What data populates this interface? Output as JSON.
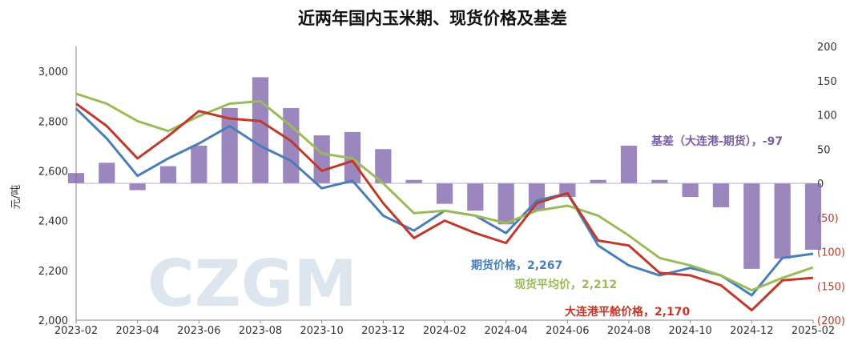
{
  "chart_data": {
    "type": "bar+line",
    "title": "近两年国内玉米期、现货价格及基差",
    "ylabel": "元/吨",
    "y_left_lim": [
      2000,
      3100
    ],
    "y_left_ticks": [
      2000,
      2200,
      2400,
      2600,
      2800,
      3000
    ],
    "y_left_tick_labels": [
      "2,000",
      "2,200",
      "2,400",
      "2,600",
      "2,800",
      "3,000"
    ],
    "y_right_lim": [
      -200,
      200
    ],
    "y_right_ticks": [
      200,
      150,
      100,
      50,
      0,
      -50,
      -100,
      -150,
      -200
    ],
    "y_right_tick_labels": [
      "200",
      "150",
      "100",
      "50",
      "0",
      "(50)",
      "(100)",
      "(150)",
      "(200)"
    ],
    "x_ticks": [
      "2023-02",
      "2023-04",
      "2023-06",
      "2023-08",
      "2023-10",
      "2023-12",
      "2024-02",
      "2024-04",
      "2024-06",
      "2024-08",
      "2024-10",
      "2024-12",
      "2025-02"
    ],
    "watermark": "CZGM",
    "colors": {
      "futures": "#4a7ebb",
      "spot_avg": "#9bbb59",
      "dalian": "#c0392b",
      "basis": "#7b5ea8"
    },
    "series": [
      {
        "key": "basis",
        "name": "基差（大连港-期货）",
        "axis": "right",
        "last_label": "基差（大连港-期货），-97",
        "x": [
          "2023-02",
          "2023-03",
          "2023-04",
          "2023-05",
          "2023-06",
          "2023-07",
          "2023-08",
          "2023-09",
          "2023-10",
          "2023-11",
          "2023-12",
          "2024-01",
          "2024-02",
          "2024-03",
          "2024-04",
          "2024-05",
          "2024-06",
          "2024-07",
          "2024-08",
          "2024-09",
          "2024-10",
          "2024-11",
          "2024-12",
          "2025-01",
          "2025-02"
        ],
        "values": [
          15,
          30,
          -10,
          25,
          55,
          110,
          155,
          110,
          70,
          75,
          50,
          5,
          -30,
          -40,
          -60,
          -40,
          -20,
          5,
          55,
          5,
          -20,
          -35,
          -125,
          -110,
          -97
        ]
      },
      {
        "key": "futures",
        "name": "期货价格",
        "axis": "left",
        "last_label": "期货价格，2,267",
        "x": [
          "2023-02",
          "2023-03",
          "2023-04",
          "2023-05",
          "2023-06",
          "2023-07",
          "2023-08",
          "2023-09",
          "2023-10",
          "2023-11",
          "2023-12",
          "2024-01",
          "2024-02",
          "2024-03",
          "2024-04",
          "2024-05",
          "2024-06",
          "2024-07",
          "2024-08",
          "2024-09",
          "2024-10",
          "2024-11",
          "2024-12",
          "2025-01",
          "2025-02"
        ],
        "values": [
          2850,
          2730,
          2580,
          2650,
          2710,
          2780,
          2700,
          2640,
          2530,
          2560,
          2420,
          2360,
          2440,
          2420,
          2350,
          2480,
          2510,
          2300,
          2220,
          2180,
          2210,
          2180,
          2100,
          2250,
          2267
        ]
      },
      {
        "key": "spot_avg",
        "name": "现货平均价",
        "axis": "left",
        "last_label": "现货平均价，2,212",
        "x": [
          "2023-02",
          "2023-03",
          "2023-04",
          "2023-05",
          "2023-06",
          "2023-07",
          "2023-08",
          "2023-09",
          "2023-10",
          "2023-11",
          "2023-12",
          "2024-01",
          "2024-02",
          "2024-03",
          "2024-04",
          "2024-05",
          "2024-06",
          "2024-07",
          "2024-08",
          "2024-09",
          "2024-10",
          "2024-11",
          "2024-12",
          "2025-01",
          "2025-02"
        ],
        "values": [
          2910,
          2870,
          2800,
          2760,
          2820,
          2870,
          2880,
          2780,
          2670,
          2650,
          2550,
          2430,
          2440,
          2420,
          2390,
          2440,
          2460,
          2420,
          2340,
          2250,
          2220,
          2180,
          2120,
          2170,
          2212
        ]
      },
      {
        "key": "dalian",
        "name": "大连港平舱价格",
        "axis": "left",
        "last_label": "大连港平舱价格，2,170",
        "x": [
          "2023-02",
          "2023-03",
          "2023-04",
          "2023-05",
          "2023-06",
          "2023-07",
          "2023-08",
          "2023-09",
          "2023-10",
          "2023-11",
          "2023-12",
          "2024-01",
          "2024-02",
          "2024-03",
          "2024-04",
          "2024-05",
          "2024-06",
          "2024-07",
          "2024-08",
          "2024-09",
          "2024-10",
          "2024-11",
          "2024-12",
          "2025-01",
          "2025-02"
        ],
        "values": [
          2870,
          2780,
          2650,
          2740,
          2840,
          2810,
          2800,
          2720,
          2600,
          2640,
          2470,
          2330,
          2400,
          2350,
          2310,
          2470,
          2510,
          2320,
          2300,
          2190,
          2180,
          2140,
          2040,
          2160,
          2170
        ]
      }
    ]
  }
}
